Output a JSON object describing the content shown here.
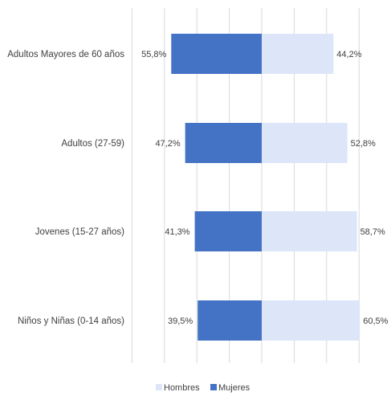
{
  "chart_data": {
    "type": "bar",
    "orientation": "horizontal-diverging",
    "categories": [
      "Adultos Mayores de 60 años",
      "Adultos (27-59)",
      "Jovenes (15-27 años)",
      "Niños y Niñas (0-14 años)"
    ],
    "series": [
      {
        "name": "Mujeres",
        "values": [
          55.8,
          47.2,
          41.3,
          39.5
        ],
        "labels": [
          "55,8%",
          "47,2%",
          "41,3%",
          "39,5%"
        ],
        "color": "#4472C4",
        "side": "left"
      },
      {
        "name": "Hombres",
        "values": [
          44.2,
          52.8,
          58.7,
          60.5
        ],
        "labels": [
          "44,2%",
          "52,8%",
          "58,7%",
          "60,5%"
        ],
        "color": "#DCE6F8",
        "side": "right"
      }
    ],
    "legend": [
      "Hombres",
      "Mujeres"
    ],
    "legend_position": "bottom",
    "grid": true,
    "xlim": [
      -80,
      80
    ],
    "tick_step": 20
  }
}
